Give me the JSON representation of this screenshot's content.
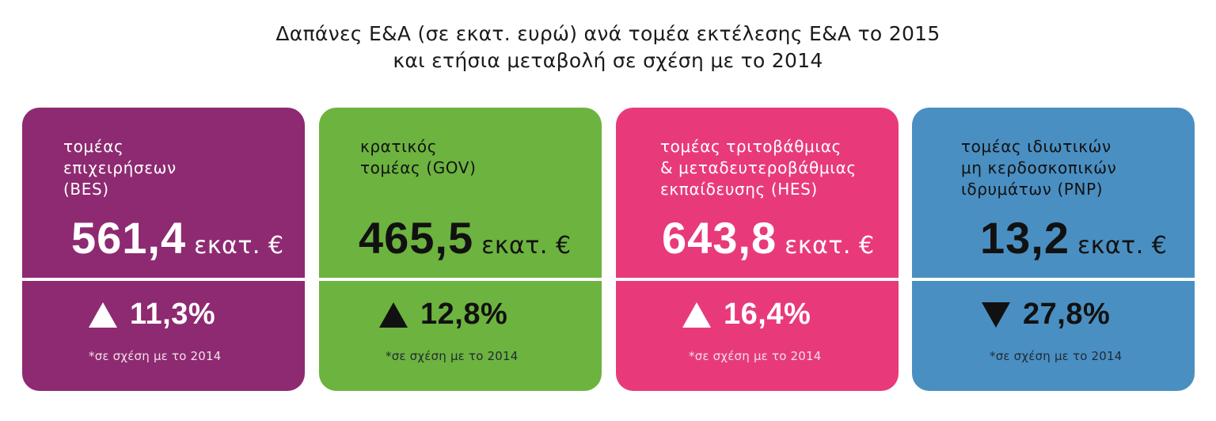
{
  "title": {
    "line1": "Δαπάνες Ε&Α (σε εκατ. ευρώ) ανά τομέα εκτέλεσης Ε&Α το 2015",
    "line2": "και ετήσια μεταβολή σε σχέση με το 2014"
  },
  "colors": {
    "bes": "#8e2a71",
    "gov": "#6db33f",
    "hes": "#e83a7b",
    "pnp": "#4a8fc2"
  },
  "cards": {
    "bes": {
      "label": [
        "τομέας",
        "επιχειρήσεων",
        "(BES)"
      ],
      "amount": "561,4",
      "unit": "εκατ. €",
      "change_direction": "up",
      "change": "11,3%",
      "note": "*σε σχέση με το 2014"
    },
    "gov": {
      "label": [
        "κρατικός",
        "τομέας (GOV)"
      ],
      "amount": "465,5",
      "unit": "εκατ. €",
      "change_direction": "up",
      "change": "12,8%",
      "note": "*σε σχέση με το 2014"
    },
    "hes": {
      "label": [
        "τομέας τριτοβάθμιας",
        "& μεταδευτεροβάθμιας",
        "εκπαίδευσης (HES)"
      ],
      "amount": "643,8",
      "unit": "εκατ. €",
      "change_direction": "up",
      "change": "16,4%",
      "note": "*σε σχέση με το 2014"
    },
    "pnp": {
      "label": [
        "τομέας ιδιωτικών",
        "μη κερδοσκοπικών",
        "ιδρυμάτων (PNP)"
      ],
      "amount": "13,2",
      "unit": "εκατ. €",
      "change_direction": "down",
      "change": "27,8%",
      "note": "*σε σχέση με το 2014"
    }
  }
}
